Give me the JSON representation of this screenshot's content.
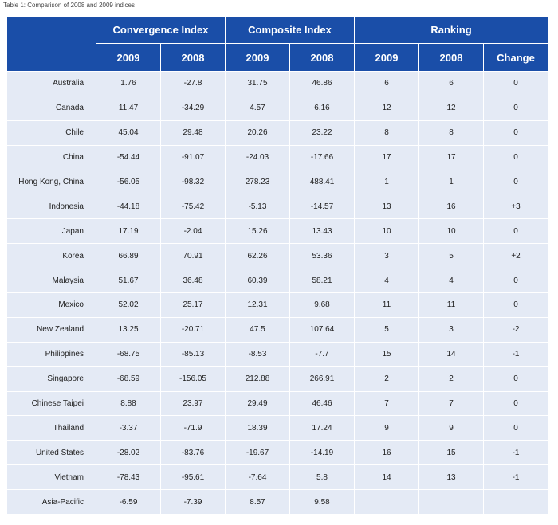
{
  "caption": "Table 1: Comparison of 2008 and 2009 indices",
  "groups": {
    "convergence": "Convergence Index",
    "composite": "Composite Index",
    "ranking": "Ranking"
  },
  "subheaders": [
    "2009",
    "2008",
    "2009",
    "2008",
    "2009",
    "2008",
    "Change"
  ],
  "rows": [
    [
      "Australia",
      "1.76",
      "-27.8",
      "31.75",
      "46.86",
      "6",
      "6",
      "0"
    ],
    [
      "Canada",
      "11.47",
      "-34.29",
      "4.57",
      "6.16",
      "12",
      "12",
      "0"
    ],
    [
      "Chile",
      "45.04",
      "29.48",
      "20.26",
      "23.22",
      "8",
      "8",
      "0"
    ],
    [
      "China",
      "-54.44",
      "-91.07",
      "-24.03",
      "-17.66",
      "17",
      "17",
      "0"
    ],
    [
      "Hong Kong, China",
      "-56.05",
      "-98.32",
      "278.23",
      "488.41",
      "1",
      "1",
      "0"
    ],
    [
      "Indonesia",
      "-44.18",
      "-75.42",
      "-5.13",
      "-14.57",
      "13",
      "16",
      "+3"
    ],
    [
      "Japan",
      "17.19",
      "-2.04",
      "15.26",
      "13.43",
      "10",
      "10",
      "0"
    ],
    [
      "Korea",
      "66.89",
      "70.91",
      "62.26",
      "53.36",
      "3",
      "5",
      "+2"
    ],
    [
      "Malaysia",
      "51.67",
      "36.48",
      "60.39",
      "58.21",
      "4",
      "4",
      "0"
    ],
    [
      "Mexico",
      "52.02",
      "25.17",
      "12.31",
      "9.68",
      "11",
      "11",
      "0"
    ],
    [
      "New Zealand",
      "13.25",
      "-20.71",
      "47.5",
      "107.64",
      "5",
      "3",
      "-2"
    ],
    [
      "Philippines",
      "-68.75",
      "-85.13",
      "-8.53",
      "-7.7",
      "15",
      "14",
      "-1"
    ],
    [
      "Singapore",
      "-68.59",
      "-156.05",
      "212.88",
      "266.91",
      "2",
      "2",
      "0"
    ],
    [
      "Chinese Taipei",
      "8.88",
      "23.97",
      "29.49",
      "46.46",
      "7",
      "7",
      "0"
    ],
    [
      "Thailand",
      "-3.37",
      "-71.9",
      "18.39",
      "17.24",
      "9",
      "9",
      "0"
    ],
    [
      "United States",
      "-28.02",
      "-83.76",
      "-19.67",
      "-14.19",
      "16",
      "15",
      "-1"
    ],
    [
      "Vietnam",
      "-78.43",
      "-95.61",
      "-7.64",
      "5.8",
      "14",
      "13",
      "-1"
    ],
    [
      "Asia-Pacific",
      "-6.59",
      "-7.39",
      "8.57",
      "9.58",
      "",
      "",
      ""
    ]
  ]
}
